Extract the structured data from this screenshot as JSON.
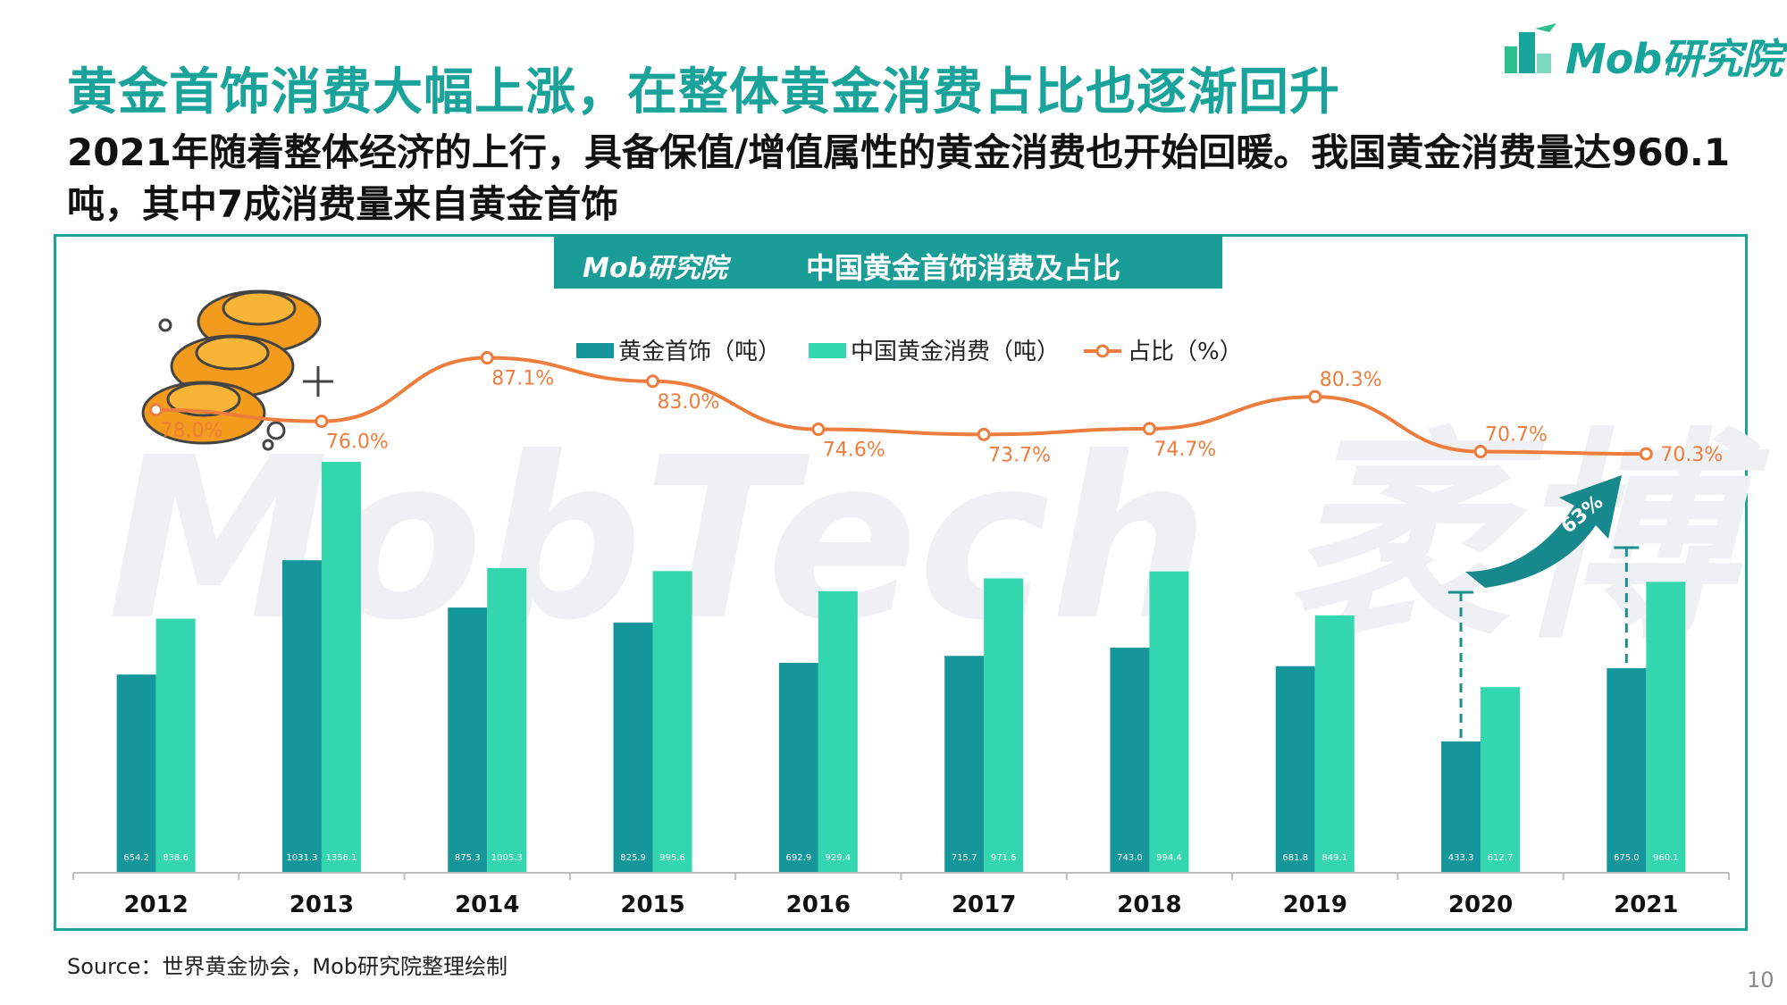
{
  "page": {
    "title": "黄金首饰消费大幅上涨，在整体黄金消费占比也逐渐回升",
    "subtitle": "2021年随着整体经济的上行，具备保值/增值属性的黄金消费也开始回暖。我国黄金消费量达960.1吨，其中7成消费量来自黄金首饰",
    "brand": "Mob研究院",
    "source": "Source：世界黄金协会，Mob研究院整理绘制",
    "page_number": "10",
    "watermark": "MobTech 袤博",
    "arrow_label": "63%"
  },
  "colors": {
    "title": "#1aa39b",
    "jewelry": "#14969b",
    "total": "#33d6ae",
    "ratio": "#ee7d3d"
  },
  "chart_data": {
    "type": "bar",
    "title": "中国黄金首饰消费及占比",
    "legend_position": "top",
    "categories": [
      "2012",
      "2013",
      "2014",
      "2015",
      "2016",
      "2017",
      "2018",
      "2019",
      "2020",
      "2021"
    ],
    "series": [
      {
        "name": "黄金首饰（吨）",
        "type": "bar",
        "values": [
          654.2,
          1031.3,
          875.3,
          825.9,
          692.9,
          715.7,
          743.0,
          681.8,
          433.3,
          675.0
        ],
        "labels": [
          "654.2",
          "1031.3",
          "875.3",
          "825.9",
          "692.9",
          "715.7",
          "743.0",
          "681.8",
          "433.3",
          "675.0"
        ]
      },
      {
        "name": "中国黄金消费（吨）",
        "type": "bar",
        "values": [
          838.6,
          1356.1,
          1005.3,
          995.6,
          929.4,
          971.6,
          994.4,
          849.1,
          612.7,
          960.1
        ],
        "labels": [
          "838.6",
          "1356.1",
          "1005.3",
          "995.6",
          "929.4",
          "971.6",
          "994.4",
          "849.1",
          "612.7",
          "960.1"
        ]
      },
      {
        "name": "占比（%）",
        "type": "line",
        "values": [
          78.0,
          76.0,
          87.1,
          83.0,
          74.6,
          73.7,
          74.7,
          80.3,
          70.7,
          70.3
        ],
        "labels": [
          "78.0%",
          "76.0%",
          "87.1%",
          "83.0%",
          "74.6%",
          "73.7%",
          "74.7%",
          "80.3%",
          "70.7%",
          "70.3%"
        ]
      }
    ],
    "grid": false
  }
}
